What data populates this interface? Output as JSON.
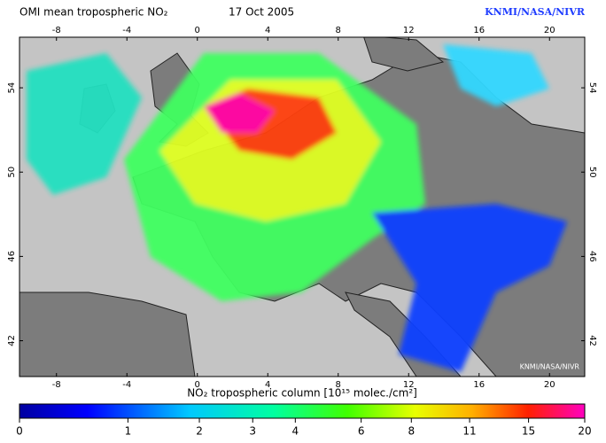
{
  "header": {
    "title": "OMI mean tropospheric NO₂",
    "date": "17 Oct 2005",
    "credit": "KNMI/NASA/NIVR"
  },
  "map": {
    "lon_ticks": [
      -8,
      -4,
      0,
      4,
      8,
      12,
      16,
      20
    ],
    "lat_ticks": [
      54,
      50,
      46,
      42
    ],
    "lon_range": [
      -10.1,
      22
    ],
    "lat_range": [
      40.3,
      56.4
    ],
    "watermark": "KNMI/NASA/NIVR"
  },
  "colorbar": {
    "label": "NO₂ tropospheric column [10¹⁵ molec./cm²]",
    "ticks": [
      0,
      1,
      2,
      3,
      4,
      6,
      8,
      11,
      15,
      20
    ]
  }
}
